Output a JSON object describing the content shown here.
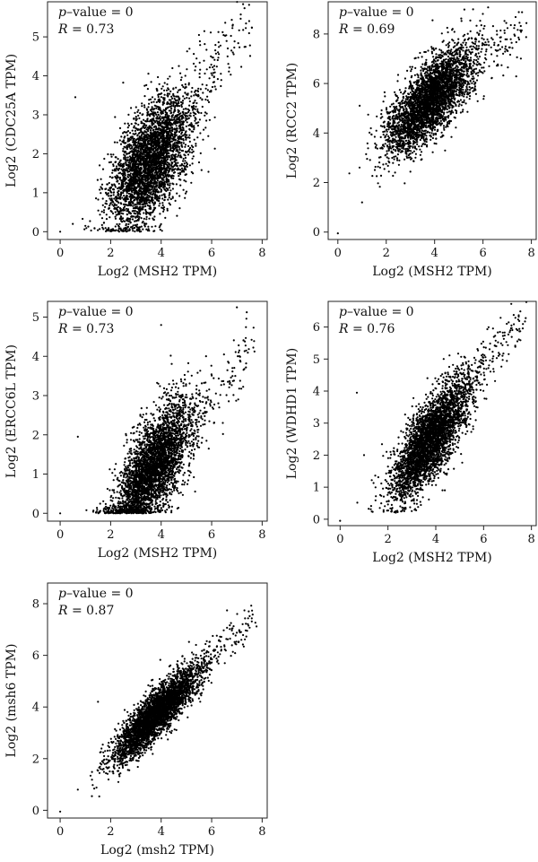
{
  "chart_data": [
    {
      "type": "scatter",
      "xlabel": "Log2 (MSH2 TPM)",
      "ylabel": "Log2 (CDC25A TPM)",
      "xlim": [
        -0.5,
        8.2
      ],
      "ylim": [
        -0.2,
        5.9
      ],
      "xticks": [
        0,
        2,
        4,
        6,
        8
      ],
      "yticks": [
        0,
        1,
        2,
        3,
        4,
        5
      ],
      "p_label": "p",
      "p_text": "–value = 0",
      "r_label": "R",
      "r_text": " = 0.73",
      "r": 0.73,
      "p_value": 0,
      "grid": false,
      "cloud": {
        "n": 3600,
        "x_mean": 3.6,
        "x_sd": 0.8,
        "slope": 0.6,
        "intercept": -0.35,
        "noise_sd": 0.7,
        "y_min": 0,
        "seed": 11
      },
      "tail": {
        "n": 110,
        "x_from": 5.2,
        "x_to": 7.6,
        "slope": 0.75,
        "intercept": -0.2,
        "noise_sd": 0.45,
        "seed": 12
      },
      "outliers": [
        [
          0,
          0
        ],
        [
          0.6,
          3.45
        ],
        [
          0.5,
          0.2
        ],
        [
          1.0,
          0.15
        ]
      ]
    },
    {
      "type": "scatter",
      "xlabel": "Log2 (MSH2 TPM)",
      "ylabel": "Log2 (RCC2 TPM)",
      "xlim": [
        -0.4,
        8.2
      ],
      "ylim": [
        -0.3,
        9.3
      ],
      "xticks": [
        0,
        2,
        4,
        6,
        8
      ],
      "yticks": [
        0,
        2,
        4,
        6,
        8
      ],
      "p_label": "p",
      "p_text": "–value = 0",
      "r_label": "R",
      "r_text": " = 0.69",
      "r": 0.69,
      "p_value": 0,
      "grid": false,
      "cloud": {
        "n": 3600,
        "x_mean": 3.8,
        "x_sd": 0.9,
        "slope": 0.85,
        "intercept": 2.1,
        "noise_sd": 0.75,
        "y_min": 0.8,
        "seed": 21
      },
      "tail": {
        "n": 90,
        "x_from": 5.5,
        "x_to": 7.8,
        "slope": 0.7,
        "intercept": 2.8,
        "noise_sd": 0.5,
        "seed": 22
      },
      "outliers": [
        [
          0,
          -0.05
        ],
        [
          1.0,
          1.2
        ],
        [
          0.9,
          5.1
        ]
      ]
    },
    {
      "type": "scatter",
      "xlabel": "Log2 (MSH2 TPM)",
      "ylabel": "Log2 (ERCC6L TPM)",
      "xlim": [
        -0.5,
        8.2
      ],
      "ylim": [
        -0.2,
        5.4
      ],
      "xticks": [
        0,
        2,
        4,
        6,
        8
      ],
      "yticks": [
        0,
        1,
        2,
        3,
        4,
        5
      ],
      "p_label": "p",
      "p_text": "–value = 0",
      "r_label": "R",
      "r_text": " = 0.73",
      "r": 0.73,
      "p_value": 0,
      "grid": false,
      "cloud": {
        "n": 3600,
        "x_mean": 3.7,
        "x_sd": 0.75,
        "slope": 0.75,
        "intercept": -1.6,
        "noise_sd": 0.6,
        "y_min": 0,
        "seed": 31
      },
      "tail": {
        "n": 120,
        "x_from": 5.2,
        "x_to": 7.7,
        "slope": 0.95,
        "intercept": -2.8,
        "noise_sd": 0.45,
        "seed": 32
      },
      "outliers": [
        [
          0,
          0
        ],
        [
          0.7,
          1.95
        ],
        [
          4.0,
          4.8
        ],
        [
          7.0,
          5.25
        ]
      ]
    },
    {
      "type": "scatter",
      "xlabel": "Log2 (MSH2 TPM)",
      "ylabel": "Log2 (WDHD1 TPM)",
      "xlim": [
        -0.5,
        8.2
      ],
      "ylim": [
        -0.2,
        6.8
      ],
      "xticks": [
        0,
        2,
        4,
        6,
        8
      ],
      "yticks": [
        0,
        1,
        2,
        3,
        4,
        5,
        6
      ],
      "p_label": "p",
      "p_text": "–value = 0",
      "r_label": "R",
      "r_text": " = 0.76",
      "r": 0.76,
      "p_value": 0,
      "grid": false,
      "cloud": {
        "n": 3600,
        "x_mean": 3.8,
        "x_sd": 0.8,
        "slope": 0.9,
        "intercept": -0.9,
        "noise_sd": 0.6,
        "y_min": 0.2,
        "seed": 41
      },
      "tail": {
        "n": 120,
        "x_from": 5.3,
        "x_to": 7.8,
        "slope": 0.9,
        "intercept": -0.6,
        "noise_sd": 0.4,
        "seed": 42
      },
      "outliers": [
        [
          0,
          -0.05
        ],
        [
          0.7,
          3.95
        ],
        [
          1.0,
          2.0
        ]
      ]
    },
    {
      "type": "scatter",
      "xlabel": "Log2 (msh2 TPM)",
      "ylabel": "Log2 (msh6 TPM)",
      "xlim": [
        -0.5,
        8.2
      ],
      "ylim": [
        -0.3,
        8.8
      ],
      "xticks": [
        0,
        2,
        4,
        6,
        8
      ],
      "yticks": [
        0,
        2,
        4,
        6,
        8
      ],
      "p_label": "p",
      "p_text": "–value = 0",
      "r_label": "R",
      "r_text": " = 0.87",
      "r": 0.87,
      "p_value": 0,
      "grid": false,
      "cloud": {
        "n": 3600,
        "x_mean": 3.8,
        "x_sd": 0.85,
        "slope": 0.95,
        "intercept": 0.1,
        "noise_sd": 0.45,
        "y_min": 0.5,
        "seed": 51
      },
      "tail": {
        "n": 100,
        "x_from": 5.5,
        "x_to": 7.8,
        "slope": 0.95,
        "intercept": 0.3,
        "noise_sd": 0.35,
        "seed": 52
      },
      "outliers": [
        [
          0,
          -0.05
        ],
        [
          0.7,
          0.8
        ],
        [
          1.5,
          4.2
        ]
      ]
    }
  ]
}
